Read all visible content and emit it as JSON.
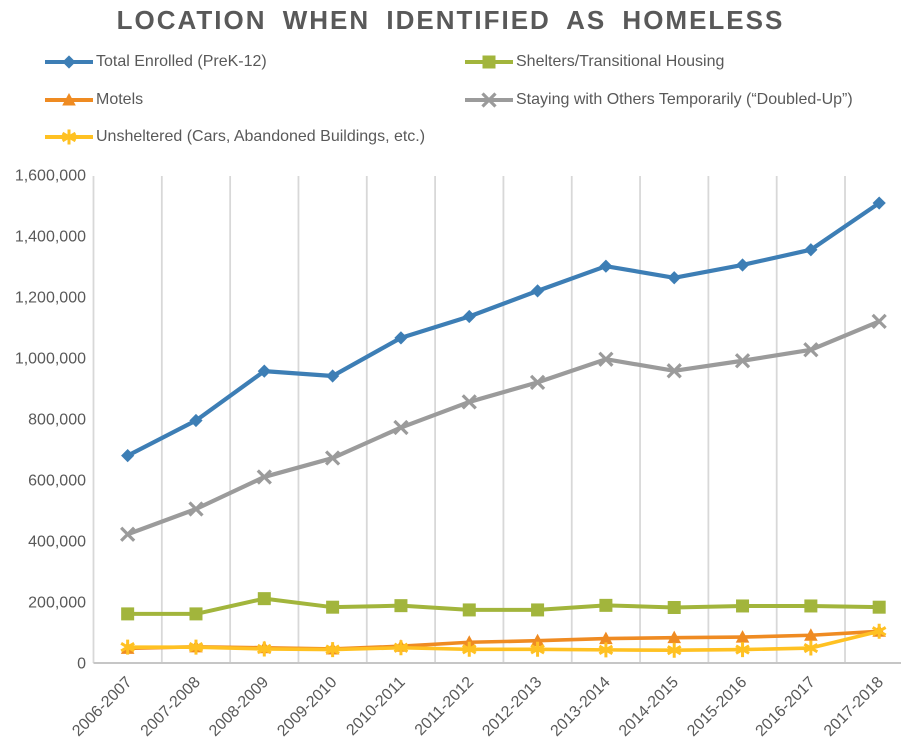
{
  "title": "LOCATION WHEN IDENTIFIED AS HOMELESS",
  "chart_data": {
    "type": "line",
    "title": "LOCATION WHEN IDENTIFIED AS HOMELESS",
    "categories": [
      "2006-2007",
      "2007-2008",
      "2008-2009",
      "2009-2010",
      "2010-2011",
      "2011-2012",
      "2012-2013",
      "2013-2014",
      "2014-2015",
      "2015-2016",
      "2016-2017",
      "2017-2018"
    ],
    "series": [
      {
        "key": "total_enrolled",
        "name": "Total Enrolled (PreK-12)",
        "color": "#3D7EB5",
        "marker": "diamond",
        "values": [
          680000,
          795000,
          957000,
          941000,
          1066000,
          1136000,
          1220000,
          1301000,
          1263000,
          1305000,
          1355000,
          1508000
        ]
      },
      {
        "key": "shelters",
        "name": "Shelters/Transitional Housing",
        "color": "#A2B53C",
        "marker": "square",
        "values": [
          161000,
          161000,
          211000,
          183000,
          188000,
          174000,
          174000,
          189000,
          182000,
          187000,
          187000,
          183000
        ]
      },
      {
        "key": "motels",
        "name": "Motels",
        "color": "#EF8B22",
        "marker": "triangle",
        "values": [
          48000,
          53000,
          50000,
          46000,
          55000,
          68000,
          73000,
          80000,
          83000,
          85000,
          91000,
          104000
        ]
      },
      {
        "key": "doubled_up",
        "name": "Staying with Others Temporarily (“Doubled-Up”)",
        "color": "#9B9B9B",
        "marker": "x",
        "values": [
          422000,
          505000,
          610000,
          672000,
          772000,
          856000,
          920000,
          996000,
          958000,
          991000,
          1027000,
          1120000
        ]
      },
      {
        "key": "unsheltered",
        "name": "Unsheltered (Cars, Abandoned Buildings, etc.)",
        "color": "#FFC122",
        "marker": "asterisk",
        "values": [
          52000,
          52000,
          46000,
          44000,
          50000,
          45000,
          45000,
          43000,
          42000,
          44000,
          49000,
          104000
        ]
      }
    ],
    "xlabel": "",
    "ylabel": "",
    "ylim": [
      0,
      1600000
    ],
    "yticks": [
      0,
      200000,
      400000,
      600000,
      800000,
      1000000,
      1200000,
      1400000,
      1600000
    ],
    "ytick_labels": [
      "0",
      "200,000",
      "400,000",
      "600,000",
      "800,000",
      "1,000,000",
      "1,200,000",
      "1,400,000",
      "1,600,000"
    ],
    "grid": "vertical-only",
    "legend_position": "top, two columns, three rows",
    "style": {
      "text_color": "#595959",
      "title_color": "#595959",
      "grid_color": "#D8D8D8",
      "axis_line_color": "#C6C6C6"
    }
  }
}
